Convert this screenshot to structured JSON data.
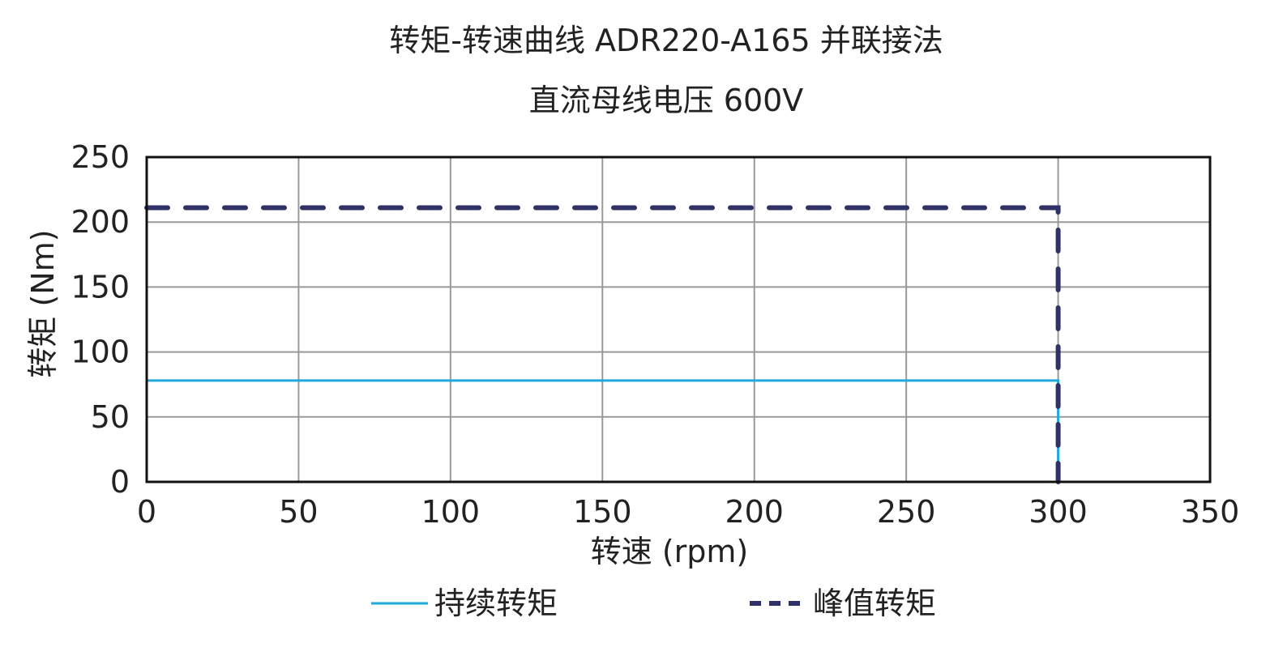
{
  "chart_data": {
    "type": "line",
    "title": "转矩-转速曲线 ADR220-A165 并联接法",
    "subtitle": "直流母线电压 600V",
    "xlabel": "转速 (rpm)",
    "ylabel": "转矩 (Nm)",
    "xlim": [
      0,
      350
    ],
    "ylim": [
      0,
      250
    ],
    "xticks": [
      "0",
      "50",
      "100",
      "150",
      "200",
      "250",
      "300",
      "350"
    ],
    "yticks": [
      "0",
      "50",
      "100",
      "150",
      "200",
      "250"
    ],
    "grid": true,
    "legend_position": "bottom",
    "series": [
      {
        "name": "持续转矩",
        "color": "#1fa9dc",
        "style": "solid",
        "x": [
          0,
          300,
          300
        ],
        "y": [
          78,
          78,
          0
        ]
      },
      {
        "name": "峰值转矩",
        "color": "#2f3266",
        "style": "dashed",
        "x": [
          0,
          300,
          300
        ],
        "y": [
          211,
          211,
          0
        ]
      }
    ]
  }
}
